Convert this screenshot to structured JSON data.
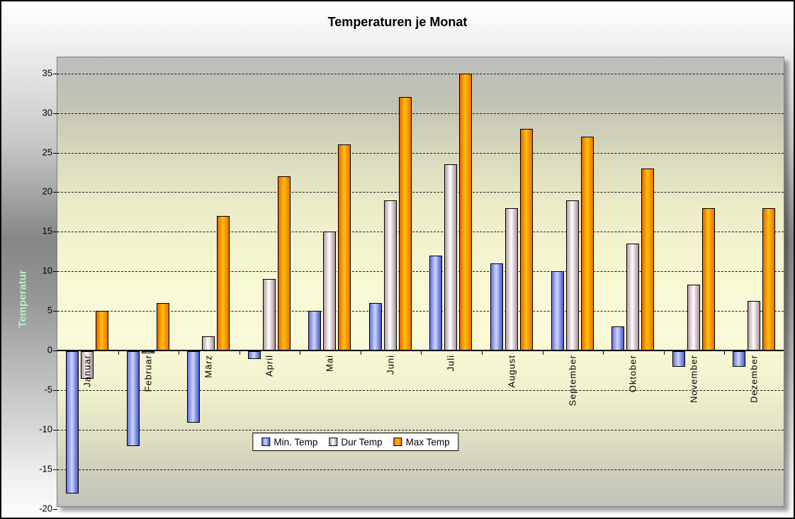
{
  "chart_data": {
    "type": "bar",
    "title": "Temperaturen je Monat",
    "ylabel": "Temperatur",
    "categories": [
      "Januar",
      "Februar",
      "März",
      "April",
      "Mai",
      "Juni",
      "Juli",
      "August",
      "September",
      "Oktober",
      "November",
      "Dezember"
    ],
    "series": [
      {
        "name": "Min. Temp",
        "values": [
          -18,
          -12,
          -9,
          -1,
          5,
          6,
          12,
          11,
          10,
          3,
          -2,
          -2
        ]
      },
      {
        "name": "Dur Temp",
        "values": [
          -3.5,
          -0.3,
          1.8,
          9,
          15,
          19,
          23.5,
          18,
          19,
          13.5,
          8.3,
          6.3
        ]
      },
      {
        "name": "Max Temp",
        "values": [
          5,
          6,
          17,
          22,
          26,
          32,
          35,
          28,
          27,
          23,
          18,
          18
        ]
      }
    ],
    "ylim": [
      -20,
      37
    ],
    "yticks": [
      35,
      30,
      25,
      20,
      15,
      10,
      5,
      0,
      -5,
      -10,
      -15,
      -20
    ],
    "grid": "horizontal-dashed",
    "legend_position": "bottom-center"
  },
  "colors": {
    "series_gradients": [
      {
        "edge_left": "#6472da",
        "mid": "#ced6fb",
        "edge_right": "#4456cc"
      },
      {
        "edge_left": "#b49ba3",
        "mid": "#ffffff",
        "edge_right": "#aa9098"
      },
      {
        "edge_left": "#e66400",
        "mid": "#ffc009",
        "edge_right": "#ea7100"
      }
    ],
    "y_axis_title": "#b5f0c5",
    "gridline": "#1a1a1a",
    "bar_outline": "#000000",
    "legend_background": "#ffffff"
  }
}
